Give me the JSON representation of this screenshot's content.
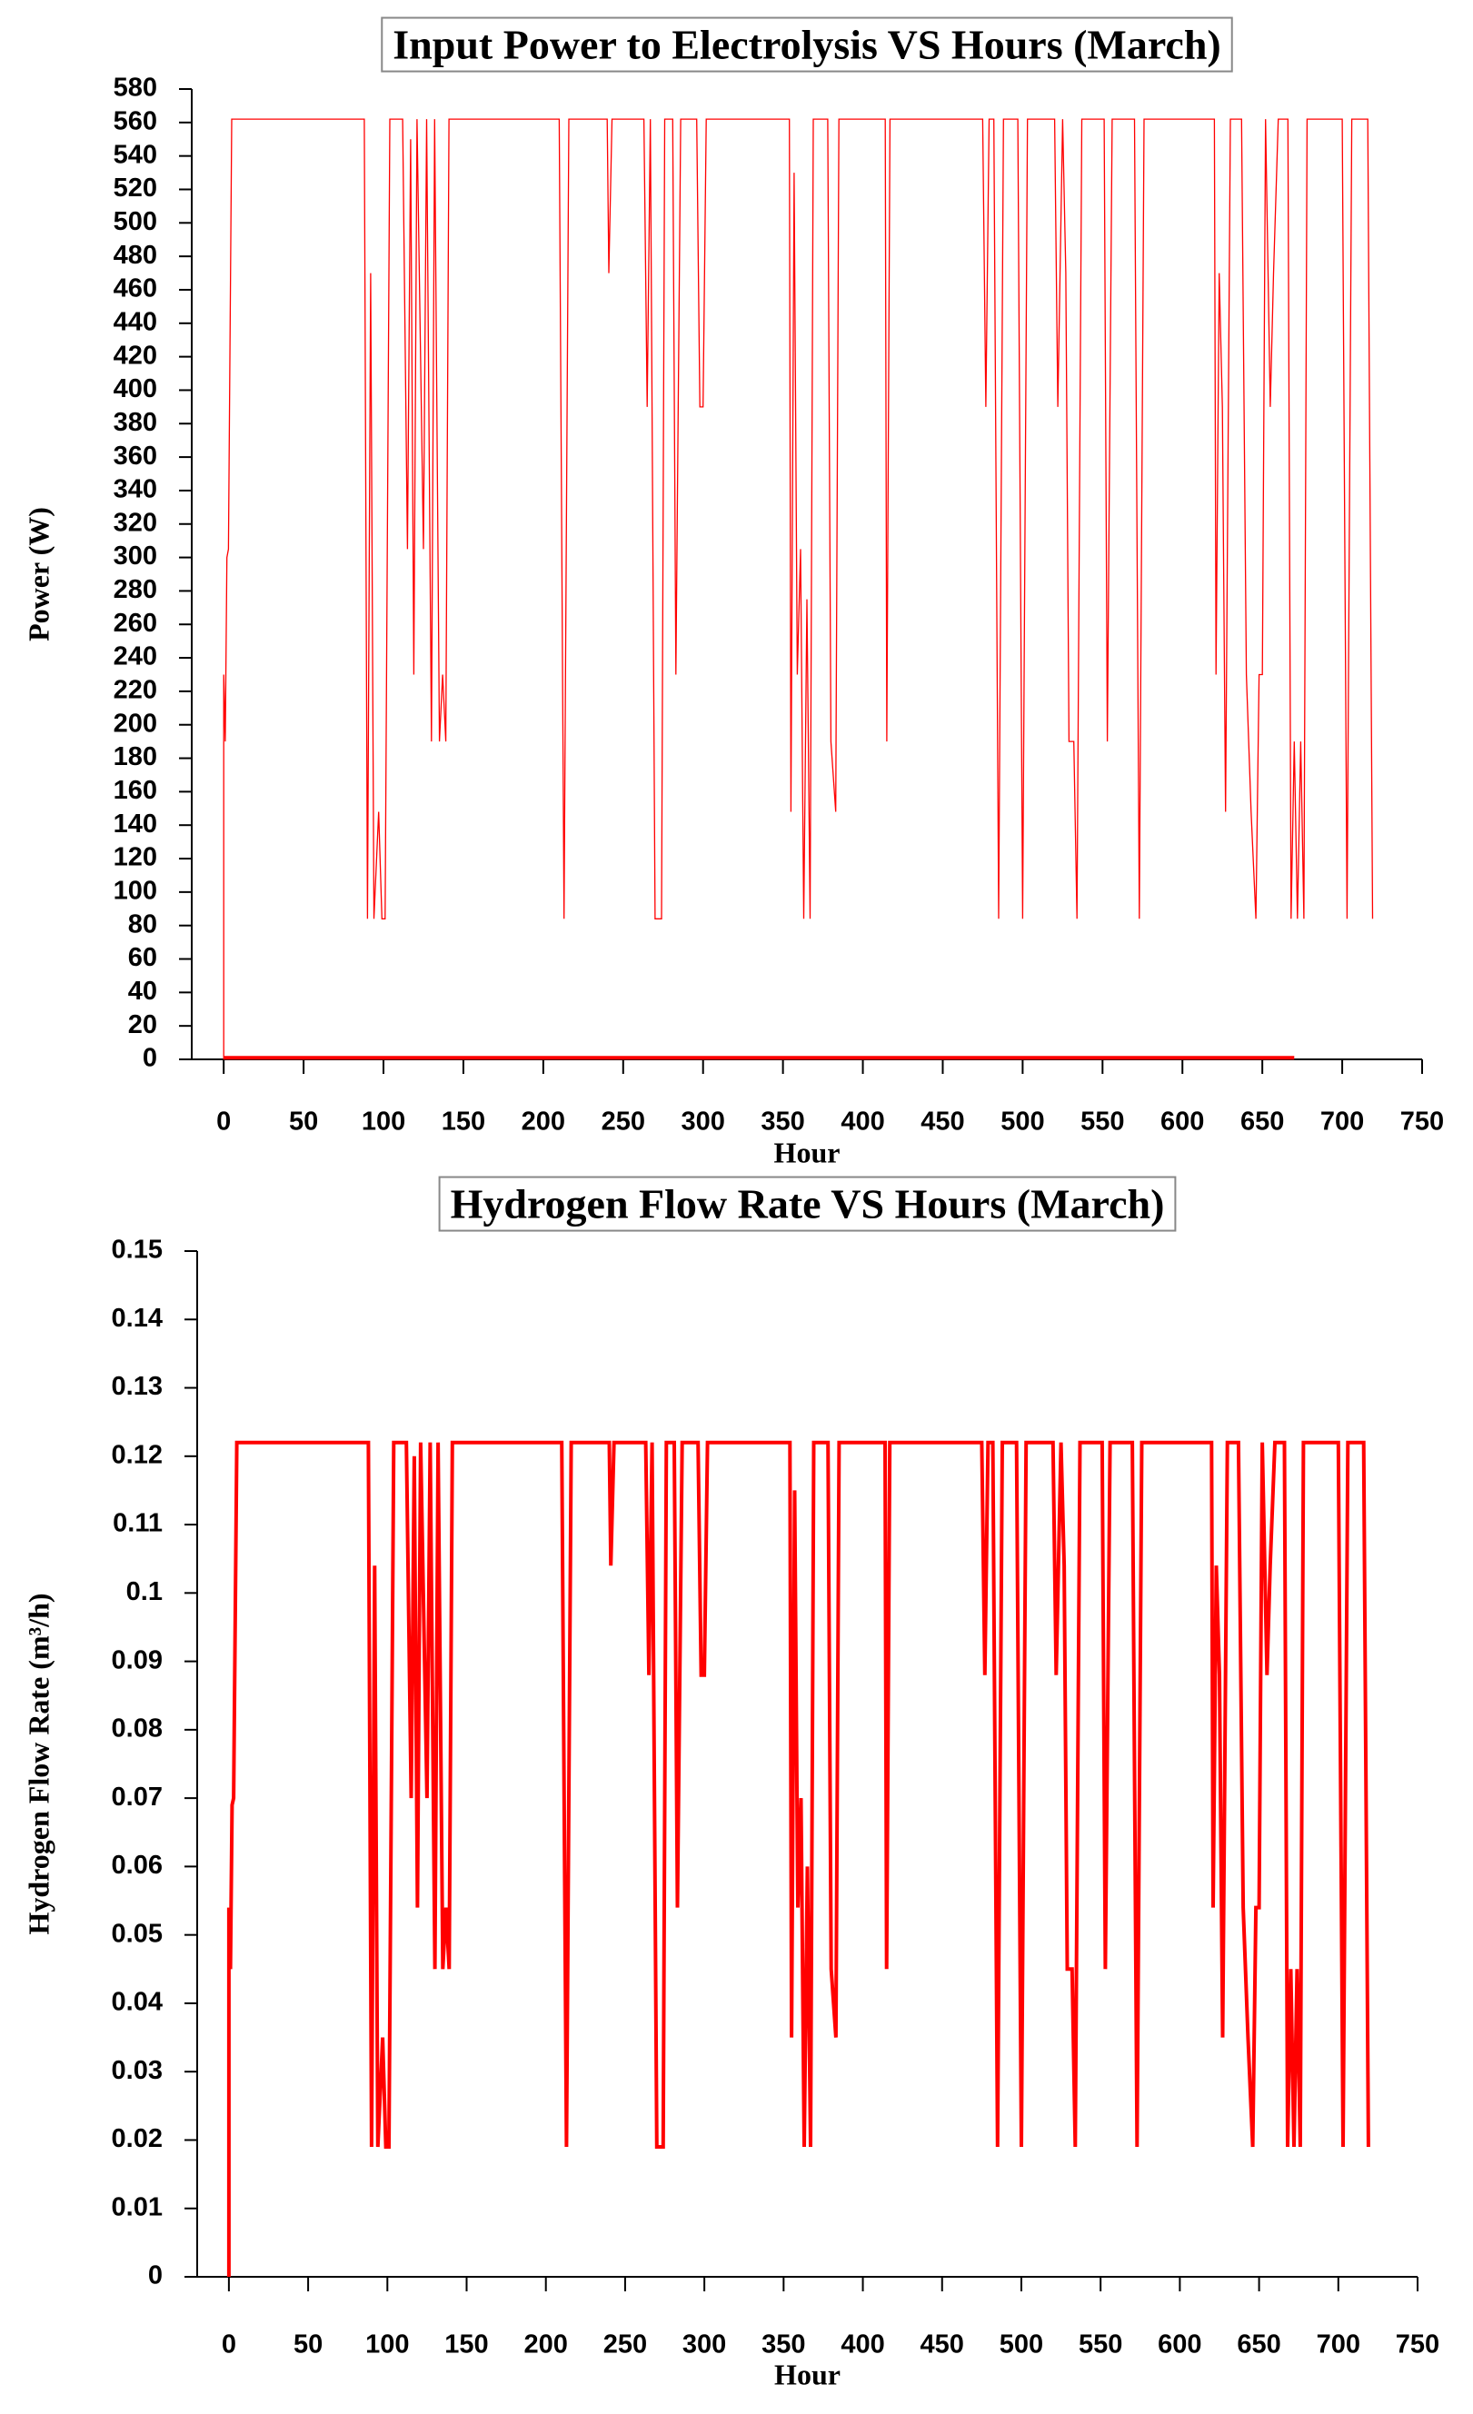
{
  "chart_data": [
    {
      "type": "line",
      "title": "Input Power to Electrolysis VS Hours (March)",
      "xlabel": "Hour",
      "ylabel": "Power (W)",
      "xlim": [
        -20,
        750
      ],
      "xticks": [
        0,
        50,
        100,
        150,
        200,
        250,
        300,
        350,
        400,
        450,
        500,
        550,
        600,
        650,
        700,
        750
      ],
      "ylim": [
        0,
        580
      ],
      "yticks": [
        0,
        20,
        40,
        60,
        80,
        100,
        120,
        140,
        160,
        180,
        200,
        220,
        240,
        260,
        280,
        300,
        320,
        340,
        360,
        380,
        400,
        420,
        440,
        460,
        480,
        500,
        520,
        540,
        560,
        580
      ],
      "series": [
        {
          "color": "#ff0000",
          "x": [
            0,
            0,
            1,
            2,
            3,
            5,
            88,
            90,
            92,
            94,
            97,
            99,
            101,
            104,
            112,
            115,
            117,
            119,
            121,
            125,
            127,
            130,
            132,
            135,
            137,
            139,
            141,
            210,
            213,
            216,
            240,
            241,
            243,
            263,
            265,
            267,
            270,
            274,
            276,
            281,
            283,
            286,
            296,
            298,
            300,
            302,
            354,
            355,
            357,
            359,
            361,
            363,
            365,
            367,
            369,
            378,
            380,
            383,
            385,
            414,
            415,
            417,
            475,
            477,
            479,
            482,
            485,
            488,
            497,
            500,
            503,
            520,
            522,
            525,
            527,
            529,
            532,
            534,
            537,
            551,
            553,
            556,
            570,
            573,
            576,
            620,
            621,
            623,
            625,
            627,
            630,
            637,
            640,
            643,
            646,
            648,
            650,
            652,
            655,
            657,
            660,
            666,
            668,
            670,
            672,
            674,
            676,
            678,
            700,
            703,
            706,
            716,
            719
          ],
          "values": [
            0,
            230,
            190,
            300,
            305,
            562,
            562,
            84,
            470,
            84,
            148,
            84,
            84,
            562,
            562,
            305,
            550,
            230,
            562,
            305,
            562,
            190,
            562,
            190,
            230,
            190,
            562,
            562,
            84,
            562,
            562,
            470,
            562,
            562,
            390,
            562,
            84,
            84,
            562,
            562,
            230,
            562,
            562,
            390,
            390,
            562,
            562,
            148,
            530,
            230,
            305,
            84,
            275,
            84,
            562,
            562,
            190,
            148,
            562,
            562,
            190,
            562,
            562,
            390,
            562,
            562,
            84,
            562,
            562,
            84,
            562,
            562,
            390,
            562,
            470,
            190,
            190,
            84,
            562,
            562,
            190,
            562,
            562,
            84,
            562,
            562,
            230,
            470,
            390,
            148,
            562,
            562,
            230,
            148,
            84,
            230,
            230,
            562,
            390,
            470,
            562,
            562,
            84,
            190,
            84,
            190,
            84,
            562,
            562,
            84,
            562,
            562,
            84
          ]
        },
        {
          "color": "#ff0000",
          "x": [
            0,
            670
          ],
          "values": [
            1,
            1
          ]
        }
      ]
    },
    {
      "type": "line",
      "title": "Hydrogen Flow Rate VS Hours (March)",
      "xlabel": "Hour",
      "ylabel": "Hydrogen Flow Rate (m³/h)",
      "xlim": [
        -20,
        750
      ],
      "xticks": [
        0,
        50,
        100,
        150,
        200,
        250,
        300,
        350,
        400,
        450,
        500,
        550,
        600,
        650,
        700,
        750
      ],
      "ylim": [
        0,
        0.15
      ],
      "yticks": [
        0,
        0.01,
        0.02,
        0.03,
        0.04,
        0.05,
        0.06,
        0.07,
        0.08,
        0.09,
        0.1,
        0.11,
        0.12,
        0.13,
        0.14,
        0.15
      ],
      "series": [
        {
          "color": "#ff0000",
          "x": [
            0,
            0,
            1,
            2,
            3,
            5,
            88,
            90,
            92,
            94,
            97,
            99,
            101,
            104,
            112,
            115,
            117,
            119,
            121,
            125,
            127,
            130,
            132,
            135,
            137,
            139,
            141,
            210,
            213,
            216,
            240,
            241,
            243,
            263,
            265,
            267,
            270,
            274,
            276,
            281,
            283,
            286,
            296,
            298,
            300,
            302,
            354,
            355,
            357,
            359,
            361,
            363,
            365,
            367,
            369,
            378,
            380,
            383,
            385,
            414,
            415,
            417,
            475,
            477,
            479,
            482,
            485,
            488,
            497,
            500,
            503,
            520,
            522,
            525,
            527,
            529,
            532,
            534,
            537,
            551,
            553,
            556,
            570,
            573,
            576,
            620,
            621,
            623,
            625,
            627,
            630,
            637,
            640,
            643,
            646,
            648,
            650,
            652,
            655,
            657,
            660,
            666,
            668,
            670,
            672,
            674,
            676,
            678,
            700,
            703,
            706,
            716,
            719
          ],
          "values": [
            0,
            0.054,
            0.045,
            0.069,
            0.07,
            0.122,
            0.122,
            0.019,
            0.104,
            0.019,
            0.035,
            0.019,
            0.019,
            0.122,
            0.122,
            0.07,
            0.12,
            0.054,
            0.122,
            0.07,
            0.122,
            0.045,
            0.122,
            0.045,
            0.054,
            0.045,
            0.122,
            0.122,
            0.019,
            0.122,
            0.122,
            0.104,
            0.122,
            0.122,
            0.088,
            0.122,
            0.019,
            0.019,
            0.122,
            0.122,
            0.054,
            0.122,
            0.122,
            0.088,
            0.088,
            0.122,
            0.122,
            0.035,
            0.115,
            0.054,
            0.07,
            0.019,
            0.06,
            0.019,
            0.122,
            0.122,
            0.045,
            0.035,
            0.122,
            0.122,
            0.045,
            0.122,
            0.122,
            0.088,
            0.122,
            0.122,
            0.019,
            0.122,
            0.122,
            0.019,
            0.122,
            0.122,
            0.088,
            0.122,
            0.104,
            0.045,
            0.045,
            0.019,
            0.122,
            0.122,
            0.045,
            0.122,
            0.122,
            0.019,
            0.122,
            0.122,
            0.054,
            0.104,
            0.088,
            0.035,
            0.122,
            0.122,
            0.054,
            0.035,
            0.019,
            0.054,
            0.054,
            0.122,
            0.088,
            0.104,
            0.122,
            0.122,
            0.019,
            0.045,
            0.019,
            0.045,
            0.019,
            0.122,
            0.122,
            0.019,
            0.122,
            0.122,
            0.019
          ]
        }
      ]
    }
  ]
}
